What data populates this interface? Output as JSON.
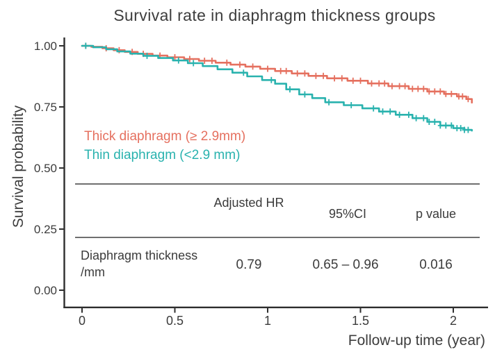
{
  "chart_data": {
    "type": "line",
    "subtype": "kaplan_meier_step",
    "title": "Survival rate in diaphragm thickness groups",
    "xlabel": "Follow-up time (year)",
    "ylabel": "Survival probability",
    "xlim": [
      0,
      2.15
    ],
    "ylim": [
      0,
      1.0
    ],
    "grid": false,
    "legend_position": "inside-left",
    "x_ticks": [
      0,
      0.5,
      1,
      1.5,
      2
    ],
    "x_tick_labels": [
      "0",
      "0.5",
      "1",
      "1.5",
      "2"
    ],
    "y_ticks": [
      1.0,
      0.75,
      0.5,
      0.25,
      0.0
    ],
    "y_tick_labels": [
      "1.00",
      "0.75",
      "0.50",
      "0.25",
      "0.00"
    ],
    "series": [
      {
        "name": "Thick diaphragm (≥ 2.9mm)",
        "color": "#E5705F",
        "points": [
          [
            0,
            1.0
          ],
          [
            0.05,
            0.996
          ],
          [
            0.11,
            0.99
          ],
          [
            0.17,
            0.982
          ],
          [
            0.23,
            0.975
          ],
          [
            0.3,
            0.967
          ],
          [
            0.38,
            0.96
          ],
          [
            0.46,
            0.953
          ],
          [
            0.55,
            0.946
          ],
          [
            0.63,
            0.939
          ],
          [
            0.72,
            0.931
          ],
          [
            0.8,
            0.923
          ],
          [
            0.88,
            0.915
          ],
          [
            0.96,
            0.906
          ],
          [
            1.04,
            0.897
          ],
          [
            1.13,
            0.887
          ],
          [
            1.22,
            0.877
          ],
          [
            1.32,
            0.867
          ],
          [
            1.43,
            0.857
          ],
          [
            1.54,
            0.846
          ],
          [
            1.65,
            0.835
          ],
          [
            1.76,
            0.824
          ],
          [
            1.86,
            0.813
          ],
          [
            1.95,
            0.803
          ],
          [
            2.02,
            0.793
          ],
          [
            2.07,
            0.782
          ],
          [
            2.1,
            0.768
          ]
        ],
        "censor_times": [
          0.02,
          0.13,
          0.2,
          0.27,
          0.33,
          0.42,
          0.5,
          0.58,
          0.66,
          0.7,
          0.78,
          0.85,
          0.92,
          1.0,
          1.07,
          1.1,
          1.16,
          1.2,
          1.26,
          1.3,
          1.36,
          1.4,
          1.46,
          1.5,
          1.56,
          1.6,
          1.63,
          1.67,
          1.71,
          1.74,
          1.78,
          1.81,
          1.84,
          1.87,
          1.9,
          1.93,
          1.96,
          1.99,
          2.03,
          2.05,
          2.08
        ]
      },
      {
        "name": "Thin diaphragm (<2.9 mm)",
        "color": "#29B2AE",
        "points": [
          [
            0,
            1.0
          ],
          [
            0.06,
            0.994
          ],
          [
            0.13,
            0.986
          ],
          [
            0.19,
            0.977
          ],
          [
            0.26,
            0.968
          ],
          [
            0.33,
            0.959
          ],
          [
            0.41,
            0.95
          ],
          [
            0.49,
            0.94
          ],
          [
            0.57,
            0.929
          ],
          [
            0.65,
            0.917
          ],
          [
            0.73,
            0.904
          ],
          [
            0.81,
            0.89
          ],
          [
            0.89,
            0.875
          ],
          [
            0.97,
            0.86
          ],
          [
            1.04,
            0.845
          ],
          [
            1.1,
            0.822
          ],
          [
            1.17,
            0.801
          ],
          [
            1.24,
            0.786
          ],
          [
            1.31,
            0.769
          ],
          [
            1.41,
            0.757
          ],
          [
            1.51,
            0.744
          ],
          [
            1.6,
            0.731
          ],
          [
            1.69,
            0.718
          ],
          [
            1.78,
            0.704
          ],
          [
            1.86,
            0.689
          ],
          [
            1.93,
            0.674
          ],
          [
            2.0,
            0.663
          ],
          [
            2.06,
            0.656
          ],
          [
            2.1,
            0.653
          ]
        ],
        "censor_times": [
          0.02,
          0.35,
          0.52,
          0.6,
          0.87,
          1.02,
          1.12,
          1.2,
          1.33,
          1.45,
          1.57,
          1.62,
          1.66,
          1.71,
          1.76,
          1.8,
          1.84,
          1.87,
          1.9,
          1.93,
          1.96,
          1.99,
          2.02,
          2.04,
          2.06,
          2.08
        ]
      }
    ]
  },
  "table": {
    "headers": [
      "Adjusted HR",
      "95%CI",
      "p value"
    ],
    "row": {
      "label": "Diaphragm thickness /mm",
      "adjusted_hr": "0.79",
      "ci_95": "0.65 – 0.96",
      "p_value": "0.016"
    }
  },
  "colors": {
    "thick": "#E5705F",
    "thin": "#29B2AE",
    "text": "#3B3B3B",
    "axis": "#2E2E2E",
    "table_line": "#6F6F6F"
  }
}
